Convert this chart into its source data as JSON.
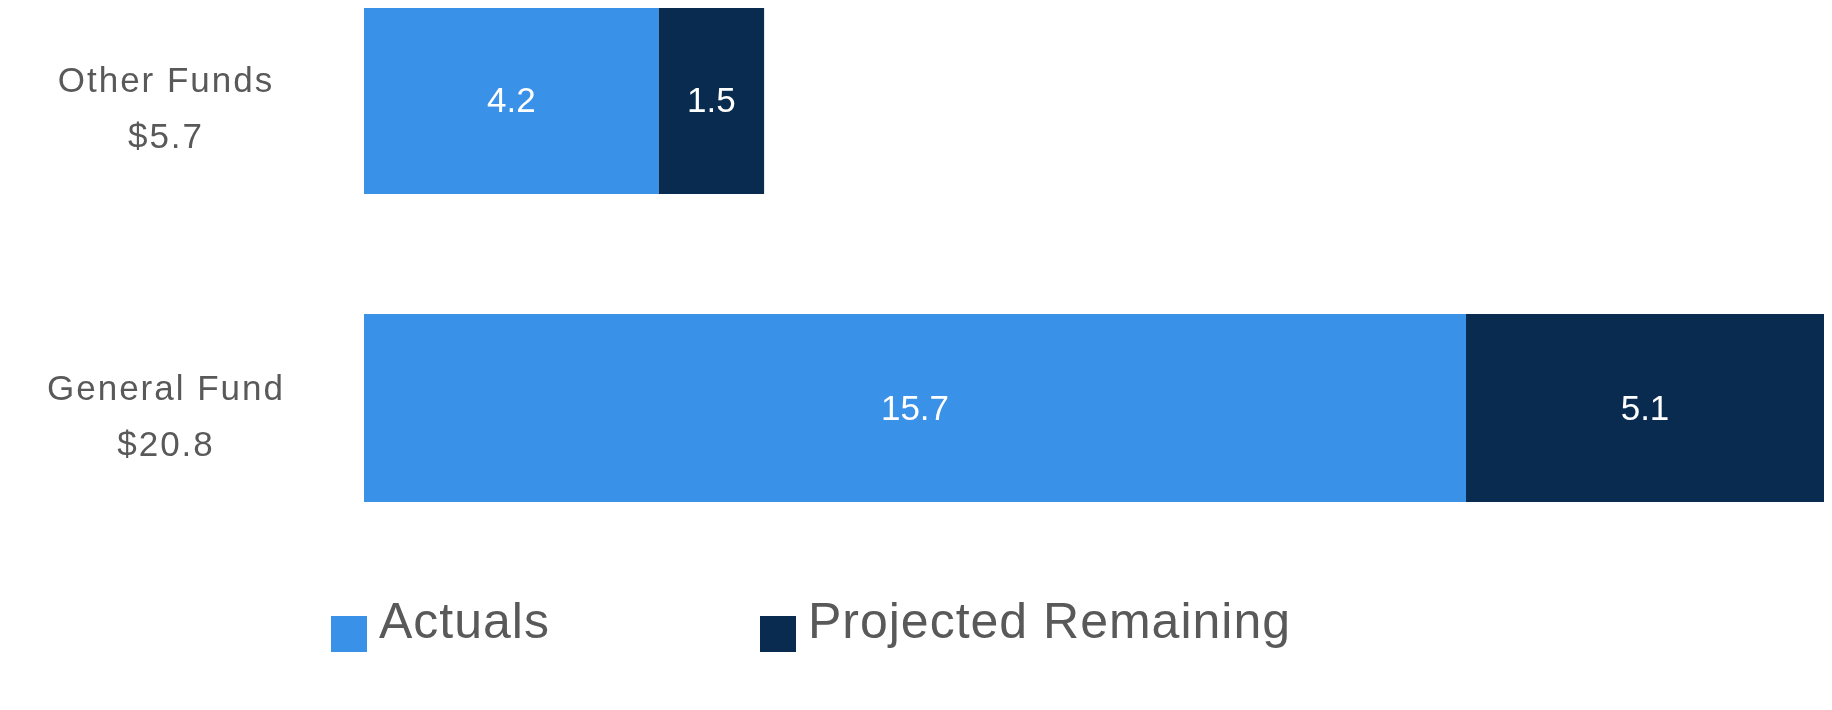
{
  "chart_data": {
    "type": "bar",
    "orientation": "horizontal",
    "stacked": true,
    "categories": [
      "Other Funds $5.7",
      "General Fund $20.8"
    ],
    "series": [
      {
        "name": "Actuals",
        "color": "#3a91e8",
        "values": [
          4.2,
          15.7
        ]
      },
      {
        "name": "Projected Remaining",
        "color": "#0a2b50",
        "values": [
          1.5,
          5.1
        ]
      }
    ],
    "data_labels": true,
    "legend": "bottom"
  }
}
